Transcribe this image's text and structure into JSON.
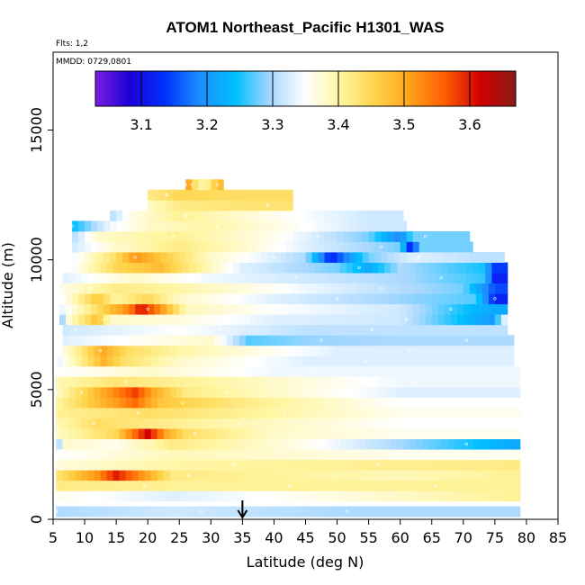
{
  "chart_data": {
    "type": "heatmap",
    "title": "ATOM1 Northeast_Pacific H1301_WAS",
    "flights_label": "Flts: 1,2",
    "dates_label": "MMDD: 0729,0801",
    "xlabel": "Latitude (deg N)",
    "ylabel": "Altitude (m)",
    "xlim": [
      5,
      85
    ],
    "ylim": [
      0,
      18000
    ],
    "x_ticks": [
      "5",
      "10",
      "15",
      "20",
      "25",
      "30",
      "35",
      "40",
      "45",
      "50",
      "55",
      "60",
      "65",
      "70",
      "75",
      "80",
      "85"
    ],
    "y_ticks": [
      "0",
      "5000",
      "10000",
      "15000"
    ],
    "colorbar": {
      "range": [
        3.03,
        3.67
      ],
      "tick_values": [
        3.1,
        3.2,
        3.3,
        3.4,
        3.5,
        3.6
      ],
      "tick_labels": [
        "3.1",
        "3.2",
        "3.3",
        "3.4",
        "3.5",
        "3.6"
      ],
      "colors": [
        "#7a1ee0",
        "#1a00d8",
        "#0033ff",
        "#1e90ff",
        "#00bfff",
        "#a8d8ff",
        "#ffffff",
        "#fff5a0",
        "#ffd34a",
        "#ffa11a",
        "#ff5a00",
        "#d00000",
        "#8b1a1a"
      ]
    },
    "arrow_marker_latitude": 35,
    "rows": [
      {
        "alt": 300,
        "x0": 5.5,
        "x1": 79,
        "segments": [
          [
            5.5,
            3.3
          ],
          [
            24,
            3.32
          ],
          [
            50,
            3.3
          ]
        ]
      },
      {
        "alt": 900,
        "x0": 5.5,
        "x1": 79,
        "segments": [
          [
            5.5,
            3.36
          ],
          [
            24,
            3.33
          ],
          [
            79,
            3.41
          ]
        ]
      },
      {
        "alt": 1300,
        "x0": 5.5,
        "x1": 79,
        "segments": [
          [
            5.5,
            3.42
          ],
          [
            24,
            3.41
          ]
        ]
      },
      {
        "alt": 1700,
        "x0": 5.5,
        "x1": 79,
        "segments": [
          [
            5.5,
            3.43
          ],
          [
            12,
            3.52
          ],
          [
            15,
            3.6
          ],
          [
            20,
            3.5
          ],
          [
            24,
            3.42
          ],
          [
            60,
            3.39
          ],
          [
            79,
            3.41
          ]
        ]
      },
      {
        "alt": 2100,
        "x0": 5.5,
        "x1": 79,
        "segments": [
          [
            5.5,
            3.37
          ],
          [
            24,
            3.4
          ],
          [
            79,
            3.42
          ]
        ]
      },
      {
        "alt": 2500,
        "x0": 5.5,
        "x1": 79,
        "segments": [
          [
            5.5,
            3.35
          ],
          [
            24,
            3.39
          ],
          [
            60,
            3.36
          ]
        ]
      },
      {
        "alt": 2900,
        "x0": 5.5,
        "x1": 79,
        "segments": [
          [
            5.5,
            3.24
          ],
          [
            6.5,
            3.38
          ],
          [
            15,
            3.36
          ],
          [
            24,
            3.42
          ],
          [
            45,
            3.36
          ],
          [
            78,
            3.22
          ]
        ]
      },
      {
        "alt": 3300,
        "x0": 5.5,
        "x1": 79,
        "segments": [
          [
            5.5,
            3.38
          ],
          [
            15,
            3.45
          ],
          [
            20,
            3.62
          ],
          [
            23,
            3.5
          ],
          [
            26,
            3.44
          ],
          [
            40,
            3.38
          ],
          [
            60,
            3.36
          ]
        ]
      },
      {
        "alt": 3700,
        "x0": 5.5,
        "x1": 79,
        "segments": [
          [
            5.5,
            3.39
          ],
          [
            12,
            3.44
          ],
          [
            30,
            3.4
          ],
          [
            60,
            3.35
          ]
        ]
      },
      {
        "alt": 4100,
        "x0": 5.5,
        "x1": 79,
        "segments": [
          [
            5.5,
            3.41
          ],
          [
            20,
            3.44
          ],
          [
            40,
            3.4
          ],
          [
            60,
            3.36
          ]
        ]
      },
      {
        "alt": 4500,
        "x0": 5.5,
        "x1": 79,
        "segments": [
          [
            5.5,
            3.4
          ],
          [
            18,
            3.55
          ],
          [
            22,
            3.47
          ],
          [
            35,
            3.42
          ],
          [
            60,
            3.35
          ]
        ]
      },
      {
        "alt": 4900,
        "x0": 5.5,
        "x1": 79,
        "segments": [
          [
            5.5,
            3.38
          ],
          [
            18,
            3.58
          ],
          [
            21,
            3.5
          ],
          [
            26,
            3.42
          ],
          [
            40,
            3.38
          ],
          [
            60,
            3.33
          ]
        ]
      },
      {
        "alt": 5300,
        "x0": 5.5,
        "x1": 79,
        "segments": [
          [
            5.5,
            3.39
          ],
          [
            15,
            3.43
          ],
          [
            30,
            3.4
          ],
          [
            60,
            3.34
          ]
        ]
      },
      {
        "alt": 5700,
        "x0": 5.5,
        "x1": 79,
        "segments": [
          [
            5.5,
            3.35
          ],
          [
            20,
            3.38
          ],
          [
            40,
            3.34
          ]
        ]
      },
      {
        "alt": 6100,
        "x0": 5.5,
        "x1": 78,
        "segments": [
          [
            5.5,
            3.33
          ],
          [
            13,
            3.49
          ],
          [
            16,
            3.44
          ],
          [
            25,
            3.38
          ],
          [
            45,
            3.33
          ]
        ]
      },
      {
        "alt": 6500,
        "x0": 5.5,
        "x1": 78,
        "segments": [
          [
            5.5,
            3.34
          ],
          [
            13,
            3.5
          ],
          [
            17,
            3.44
          ],
          [
            25,
            3.4
          ],
          [
            50,
            3.33
          ]
        ]
      },
      {
        "alt": 6900,
        "x0": 6.5,
        "x1": 78,
        "segments": [
          [
            6.5,
            3.33
          ],
          [
            20,
            3.36
          ],
          [
            30,
            3.38
          ],
          [
            36,
            3.27
          ],
          [
            45,
            3.29
          ],
          [
            60,
            3.3
          ]
        ]
      },
      {
        "alt": 7300,
        "x0": 6.5,
        "x1": 77,
        "segments": [
          [
            6.5,
            3.32
          ],
          [
            25,
            3.35
          ],
          [
            45,
            3.31
          ]
        ]
      },
      {
        "alt": 7700,
        "x0": 6,
        "x1": 77,
        "segments": [
          [
            6,
            3.24
          ],
          [
            7,
            3.36
          ],
          [
            12,
            3.48
          ],
          [
            14,
            3.38
          ],
          [
            25,
            3.37
          ],
          [
            40,
            3.33
          ],
          [
            60,
            3.32
          ],
          [
            75,
            3.2
          ],
          [
            76,
            3.33
          ]
        ]
      },
      {
        "alt": 8100,
        "x0": 6,
        "x1": 77,
        "segments": [
          [
            6,
            3.33
          ],
          [
            17,
            3.53
          ],
          [
            19,
            3.61
          ],
          [
            22,
            3.52
          ],
          [
            26,
            3.39
          ],
          [
            40,
            3.35
          ],
          [
            60,
            3.32
          ],
          [
            74,
            3.22
          ]
        ]
      },
      {
        "alt": 8500,
        "x0": 6,
        "x1": 77,
        "segments": [
          [
            6,
            3.34
          ],
          [
            12,
            3.47
          ],
          [
            15,
            3.4
          ],
          [
            20,
            3.45
          ],
          [
            25,
            3.38
          ],
          [
            40,
            3.33
          ],
          [
            72,
            3.27
          ],
          [
            75,
            3.12
          ]
        ]
      },
      {
        "alt": 8900,
        "x0": 6,
        "x1": 77,
        "segments": [
          [
            6,
            3.36
          ],
          [
            15,
            3.42
          ],
          [
            25,
            3.4
          ],
          [
            45,
            3.34
          ],
          [
            70,
            3.28
          ],
          [
            75,
            3.15
          ]
        ]
      },
      {
        "alt": 9300,
        "x0": 6.5,
        "x1": 77,
        "segments": [
          [
            6.5,
            3.33
          ],
          [
            18,
            3.38
          ],
          [
            30,
            3.34
          ],
          [
            60,
            3.3
          ],
          [
            73,
            3.26
          ],
          [
            75,
            3.12
          ]
        ]
      },
      {
        "alt": 9700,
        "x0": 7.5,
        "x1": 77,
        "segments": [
          [
            7.5,
            3.34
          ],
          [
            15,
            3.45
          ],
          [
            22,
            3.48
          ],
          [
            27,
            3.42
          ],
          [
            35,
            3.33
          ],
          [
            50,
            3.28
          ],
          [
            55,
            3.22
          ],
          [
            60,
            3.3
          ],
          [
            73,
            3.25
          ],
          [
            75,
            3.14
          ]
        ]
      },
      {
        "alt": 10100,
        "x0": 8,
        "x1": 76.5,
        "segments": [
          [
            8,
            3.34
          ],
          [
            15,
            3.44
          ],
          [
            18,
            3.52
          ],
          [
            22,
            3.47
          ],
          [
            30,
            3.38
          ],
          [
            45,
            3.3
          ],
          [
            49,
            3.12
          ],
          [
            55,
            3.28
          ],
          [
            62,
            3.33
          ],
          [
            72,
            3.31
          ]
        ]
      },
      {
        "alt": 10500,
        "x0": 8,
        "x1": 71.5,
        "segments": [
          [
            8,
            3.32
          ],
          [
            15,
            3.38
          ],
          [
            25,
            3.42
          ],
          [
            35,
            3.38
          ],
          [
            45,
            3.33
          ],
          [
            60,
            3.28
          ],
          [
            62,
            3.08
          ],
          [
            63,
            3.28
          ]
        ]
      },
      {
        "alt": 10900,
        "x0": 8,
        "x1": 71,
        "segments": [
          [
            8,
            3.3
          ],
          [
            12,
            3.38
          ],
          [
            25,
            3.41
          ],
          [
            40,
            3.36
          ],
          [
            55,
            3.28
          ],
          [
            60,
            3.18
          ],
          [
            62,
            3.28
          ]
        ]
      },
      {
        "alt": 11300,
        "x0": 8,
        "x1": 61,
        "segments": [
          [
            8,
            3.24
          ],
          [
            14,
            3.34
          ],
          [
            20,
            3.38
          ],
          [
            30,
            3.4
          ],
          [
            45,
            3.35
          ],
          [
            55,
            3.32
          ]
        ]
      },
      {
        "alt": 11700,
        "x0": 14,
        "x1": 60.5,
        "segments": [
          [
            14,
            3.3
          ],
          [
            17,
            3.36
          ],
          [
            25,
            3.41
          ],
          [
            40,
            3.36
          ],
          [
            55,
            3.32
          ]
        ]
      },
      {
        "alt": 12100,
        "x0": 20,
        "x1": 43,
        "segments": [
          [
            20,
            3.38
          ],
          [
            25,
            3.42
          ],
          [
            35,
            3.43
          ]
        ]
      },
      {
        "alt": 12500,
        "x0": 20,
        "x1": 43,
        "segments": [
          [
            20,
            3.42
          ],
          [
            25,
            3.45
          ],
          [
            35,
            3.44
          ]
        ]
      },
      {
        "alt": 12900,
        "x0": 26,
        "x1": 32,
        "segments": [
          [
            26,
            3.55
          ],
          [
            27,
            3.45
          ],
          [
            29,
            3.39
          ],
          [
            31,
            3.48
          ]
        ]
      }
    ]
  }
}
